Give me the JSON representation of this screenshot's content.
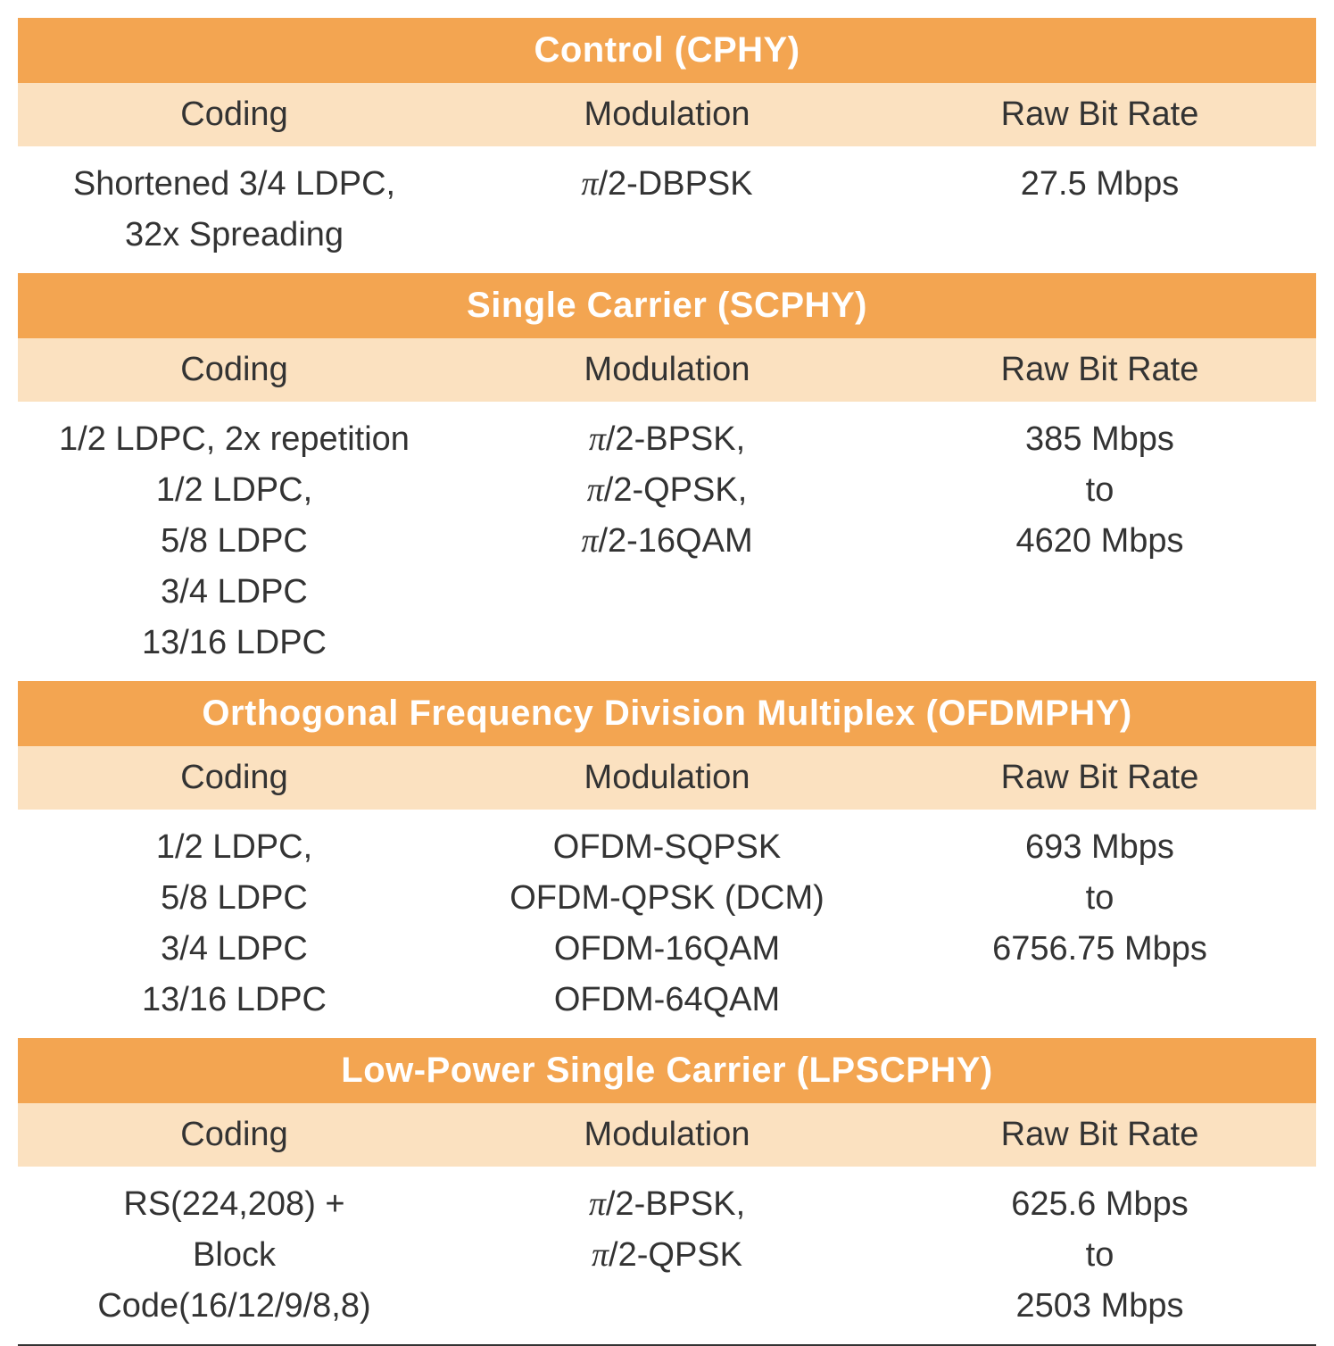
{
  "colors": {
    "section_title_bg": "#f3a551",
    "section_title_fg": "#ffffff",
    "header_row_bg": "#fbe1c0",
    "text_color": "#333333",
    "data_bg": "#ffffff",
    "bottom_border": "#333333"
  },
  "typography": {
    "title_fontsize": 40,
    "title_fontweight": "bold",
    "header_fontsize": 38,
    "data_fontsize": 38
  },
  "columns": [
    "Coding",
    "Modulation",
    "Raw Bit Rate"
  ],
  "sections": [
    {
      "title": "Control (CPHY)",
      "rows": [
        {
          "coding": "Shortened 3/4 LDPC,\n32x Spreading",
          "modulation": "π/2-DBPSK",
          "rate": "27.5 Mbps"
        }
      ]
    },
    {
      "title": "Single Carrier (SCPHY)",
      "rows": [
        {
          "coding": "1/2 LDPC, 2x repetition\n1/2 LDPC,\n5/8 LDPC\n3/4 LDPC\n13/16 LDPC",
          "modulation": "π/2-BPSK,\nπ/2-QPSK,\nπ/2-16QAM",
          "rate": "385 Mbps\nto\n4620 Mbps"
        }
      ]
    },
    {
      "title": "Orthogonal Frequency Division Multiplex (OFDMPHY)",
      "rows": [
        {
          "coding": "1/2 LDPC,\n5/8 LDPC\n3/4 LDPC\n13/16 LDPC",
          "modulation": "OFDM-SQPSK\nOFDM-QPSK (DCM)\nOFDM-16QAM\nOFDM-64QAM",
          "rate": "693 Mbps\nto\n6756.75 Mbps"
        }
      ]
    },
    {
      "title": "Low-Power Single Carrier (LPSCPHY)",
      "rows": [
        {
          "coding": "RS(224,208)  +\nBlock\nCode(16/12/9/8,8)",
          "modulation": "π/2-BPSK,\nπ/2-QPSK",
          "rate": "625.6 Mbps\nto\n2503 Mbps"
        }
      ]
    }
  ]
}
